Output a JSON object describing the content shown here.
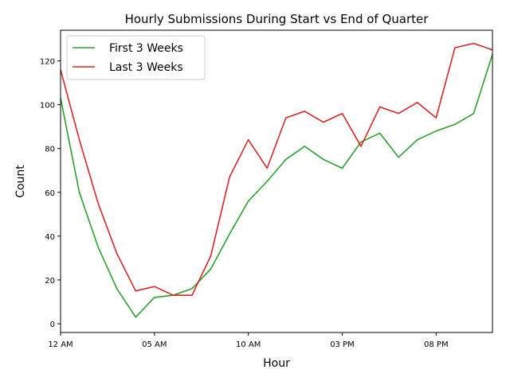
{
  "chart_data": {
    "type": "line",
    "title": "Hourly Submissions During Start vs End of Quarter",
    "xlabel": "Hour",
    "ylabel": "Count",
    "xlim": [
      0,
      23
    ],
    "ylim": [
      -4,
      134
    ],
    "x": [
      0,
      1,
      2,
      3,
      4,
      5,
      6,
      7,
      8,
      9,
      10,
      11,
      12,
      13,
      14,
      15,
      16,
      17,
      18,
      19,
      20,
      21,
      22,
      23
    ],
    "x_ticks": [
      {
        "value": 0,
        "label": "12 AM"
      },
      {
        "value": 5,
        "label": "05 AM"
      },
      {
        "value": 10,
        "label": "10 AM"
      },
      {
        "value": 15,
        "label": "03 PM"
      },
      {
        "value": 20,
        "label": "08 PM"
      }
    ],
    "y_ticks": [
      0,
      20,
      40,
      60,
      80,
      100,
      120
    ],
    "grid": false,
    "legend_position": "top-left",
    "series": [
      {
        "name": "First 3 Weeks",
        "color": "#2ca02c",
        "values": [
          103,
          60,
          35,
          16,
          3,
          12,
          13,
          16,
          25,
          41,
          56,
          65,
          75,
          81,
          75,
          71,
          83,
          87,
          76,
          84,
          88,
          91,
          96,
          123
        ]
      },
      {
        "name": "Last 3 Weeks",
        "color": "#d62728",
        "values": [
          116,
          84,
          55,
          32,
          15,
          17,
          13,
          13,
          31,
          67,
          84,
          71,
          94,
          97,
          92,
          96,
          81,
          99,
          96,
          101,
          94,
          126,
          128,
          125
        ]
      }
    ]
  }
}
